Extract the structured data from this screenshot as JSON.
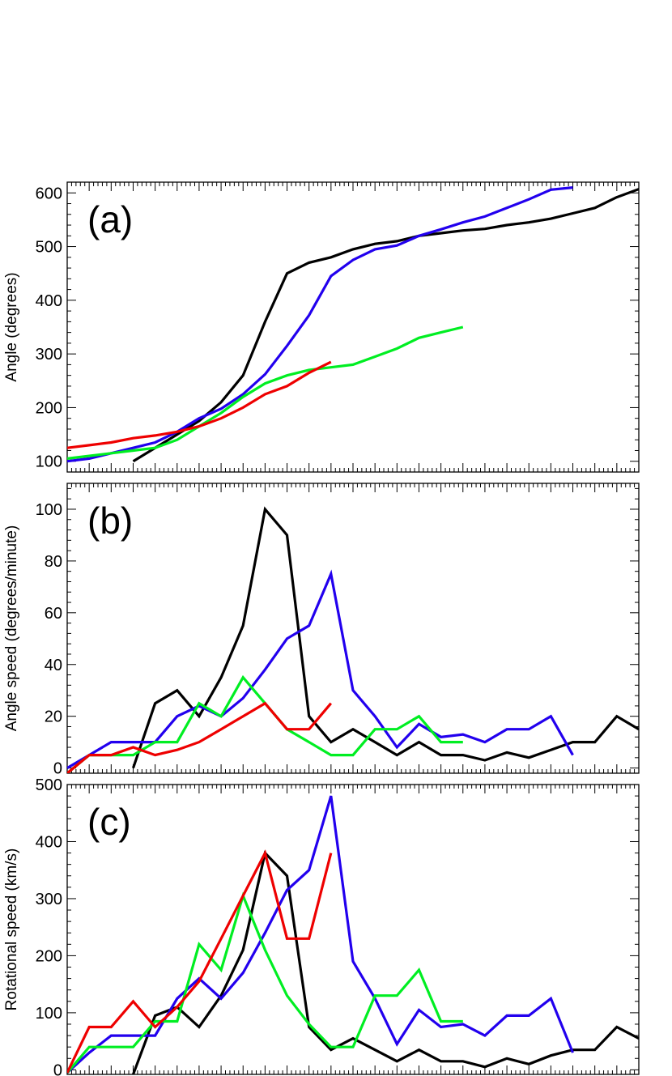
{
  "chart_data": [
    {
      "type": "line",
      "panel_label": "(a)",
      "xlabel": "",
      "ylabel": "Angle (degrees)",
      "xlim": [
        0,
        26
      ],
      "ylim": [
        80,
        620
      ],
      "yticks": [
        100,
        200,
        300,
        400,
        500,
        600
      ],
      "grid": false,
      "series": [
        {
          "color": "#000000",
          "x": [
            3,
            4,
            5,
            6,
            7,
            8,
            9,
            10,
            11,
            12,
            13,
            14,
            15,
            16,
            17,
            18,
            19,
            20,
            21,
            22,
            23,
            24,
            25,
            26
          ],
          "values": [
            100,
            125,
            150,
            175,
            210,
            260,
            360,
            450,
            470,
            480,
            495,
            505,
            510,
            520,
            525,
            530,
            533,
            540,
            545,
            552,
            562,
            572,
            592,
            607
          ]
        },
        {
          "color": "#2200ee",
          "x": [
            0,
            1,
            2,
            3,
            4,
            5,
            6,
            7,
            8,
            9,
            10,
            11,
            12,
            13,
            14,
            15,
            16,
            17,
            18,
            19,
            20,
            21,
            22,
            23
          ],
          "values": [
            100,
            105,
            115,
            125,
            135,
            155,
            180,
            198,
            225,
            262,
            315,
            372,
            445,
            475,
            495,
            502,
            520,
            532,
            545,
            556,
            572,
            588,
            606,
            610
          ]
        },
        {
          "color": "#00ee22",
          "x": [
            0,
            1,
            2,
            3,
            4,
            5,
            6,
            7,
            8,
            9,
            10,
            11,
            12,
            13,
            14,
            15,
            16,
            17,
            18
          ],
          "values": [
            105,
            110,
            115,
            120,
            125,
            140,
            165,
            190,
            220,
            245,
            260,
            270,
            275,
            280,
            295,
            310,
            330,
            340,
            350
          ]
        },
        {
          "color": "#ee0000",
          "x": [
            0,
            1,
            2,
            3,
            4,
            5,
            6,
            7,
            8,
            9,
            10,
            11,
            12
          ],
          "values": [
            125,
            130,
            135,
            143,
            148,
            155,
            165,
            180,
            200,
            225,
            240,
            265,
            285
          ]
        }
      ]
    },
    {
      "type": "line",
      "panel_label": "(b)",
      "xlabel": "",
      "ylabel": "Angle speed (degrees/minute)",
      "xlim": [
        0,
        26
      ],
      "ylim": [
        -2,
        110
      ],
      "yticks": [
        0,
        20,
        40,
        60,
        80,
        100
      ],
      "grid": false,
      "series": [
        {
          "color": "#000000",
          "x": [
            3,
            4,
            5,
            6,
            7,
            8,
            9,
            10,
            11,
            12,
            13,
            14,
            15,
            16,
            17,
            18,
            19,
            20,
            21,
            22,
            23,
            24,
            25,
            26
          ],
          "values": [
            0,
            25,
            30,
            20,
            35,
            55,
            100,
            90,
            20,
            10,
            15,
            10,
            5,
            10,
            5,
            5,
            3,
            6,
            4,
            7,
            10,
            10,
            20,
            15
          ]
        },
        {
          "color": "#2200ee",
          "x": [
            0,
            1,
            2,
            3,
            4,
            5,
            6,
            7,
            8,
            9,
            10,
            11,
            12,
            13,
            14,
            15,
            16,
            17,
            18,
            19,
            20,
            21,
            22,
            23
          ],
          "values": [
            0,
            5,
            10,
            10,
            10,
            20,
            24,
            20,
            27,
            38,
            50,
            55,
            75,
            30,
            20,
            8,
            17,
            12,
            13,
            10,
            15,
            15,
            20,
            5
          ]
        },
        {
          "color": "#00ee22",
          "x": [
            0,
            1,
            2,
            3,
            4,
            5,
            6,
            7,
            8,
            9,
            10,
            11,
            12,
            13,
            14,
            15,
            16,
            17,
            18
          ],
          "values": [
            -2,
            5,
            5,
            5,
            10,
            10,
            25,
            20,
            35,
            25,
            15,
            10,
            5,
            5,
            15,
            15,
            20,
            10,
            10
          ]
        },
        {
          "color": "#ee0000",
          "x": [
            0,
            1,
            2,
            3,
            4,
            5,
            6,
            7,
            8,
            9,
            10,
            11,
            12
          ],
          "values": [
            -2,
            5,
            5,
            8,
            5,
            7,
            10,
            15,
            20,
            25,
            15,
            15,
            25
          ]
        }
      ]
    },
    {
      "type": "line",
      "panel_label": "(c)",
      "xlabel": "",
      "ylabel": "Rotational speed (km/s)",
      "xlim": [
        0,
        26
      ],
      "ylim": [
        -8,
        500
      ],
      "yticks": [
        0,
        100,
        200,
        300,
        400,
        500
      ],
      "grid": false,
      "series": [
        {
          "color": "#000000",
          "x": [
            3,
            4,
            5,
            6,
            7,
            8,
            9,
            10,
            11,
            12,
            13,
            14,
            15,
            16,
            17,
            18,
            19,
            20,
            21,
            22,
            23,
            24,
            25,
            26
          ],
          "values": [
            -8,
            95,
            110,
            75,
            130,
            210,
            380,
            340,
            75,
            35,
            55,
            35,
            15,
            35,
            15,
            15,
            5,
            20,
            10,
            25,
            35,
            35,
            75,
            55
          ]
        },
        {
          "color": "#2200ee",
          "x": [
            0,
            1,
            2,
            3,
            4,
            5,
            6,
            7,
            8,
            9,
            10,
            11,
            12,
            13,
            14,
            15,
            16,
            17,
            18,
            19,
            20,
            21,
            22,
            23
          ],
          "values": [
            -5,
            30,
            60,
            60,
            60,
            125,
            160,
            125,
            170,
            240,
            315,
            350,
            480,
            190,
            125,
            45,
            105,
            75,
            80,
            60,
            95,
            95,
            125,
            30
          ]
        },
        {
          "color": "#00ee22",
          "x": [
            0,
            1,
            2,
            3,
            4,
            5,
            6,
            7,
            8,
            9,
            10,
            11,
            12,
            13,
            14,
            15,
            16,
            17,
            18
          ],
          "values": [
            -5,
            40,
            40,
            40,
            85,
            85,
            220,
            175,
            305,
            210,
            130,
            80,
            40,
            40,
            130,
            130,
            175,
            85,
            85
          ]
        },
        {
          "color": "#ee0000",
          "x": [
            0,
            1,
            2,
            3,
            4,
            5,
            6,
            7,
            8,
            9,
            10,
            11,
            12
          ],
          "values": [
            -5,
            75,
            75,
            120,
            75,
            110,
            155,
            230,
            305,
            380,
            230,
            230,
            380
          ]
        }
      ]
    }
  ]
}
